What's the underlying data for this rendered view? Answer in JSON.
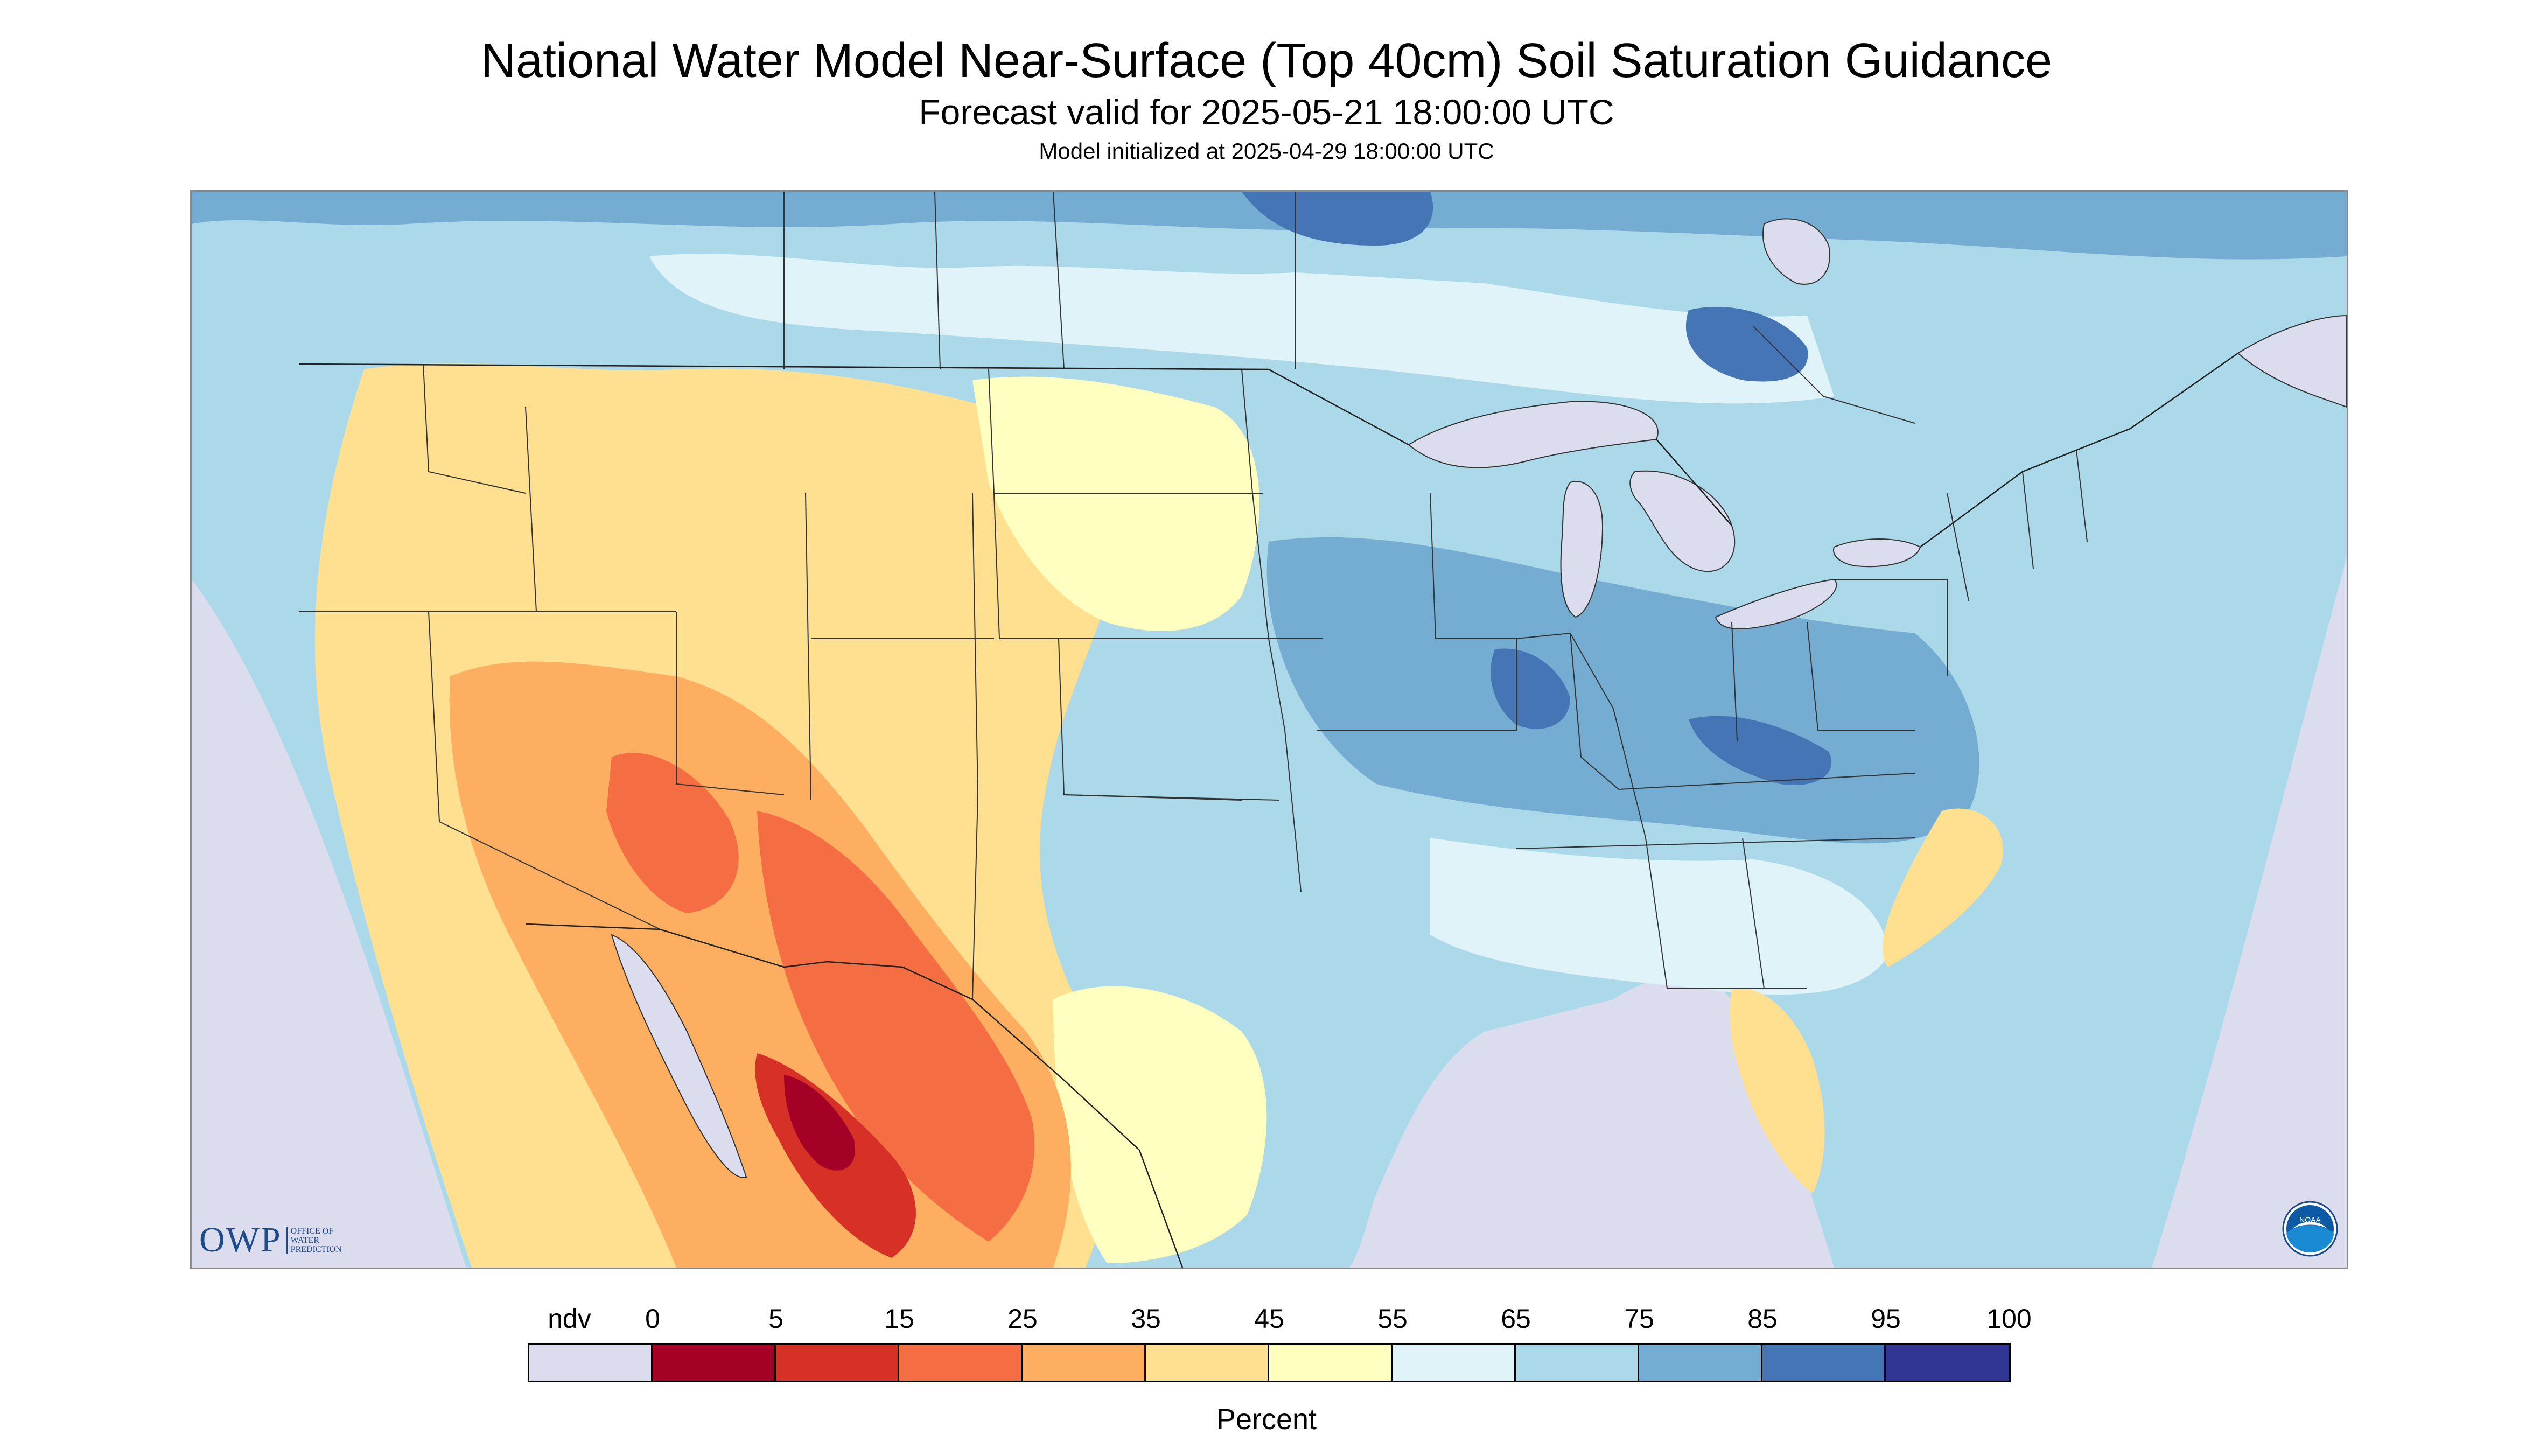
{
  "header": {
    "title": "National Water Model Near-Surface (Top 40cm) Soil Saturation Guidance",
    "subtitle": "Forecast valid for 2025-05-21 18:00:00 UTC",
    "init": "Model initialized at 2025-04-29 18:00:00 UTC"
  },
  "logos": {
    "owp_main": "OWP",
    "owp_sub": [
      "OFFICE OF",
      "WATER",
      "PREDICTION"
    ],
    "noaa": "NOAA"
  },
  "legend": {
    "labels": [
      "ndv",
      "0",
      "5",
      "15",
      "25",
      "35",
      "45",
      "55",
      "65",
      "75",
      "85",
      "95",
      "100"
    ],
    "colors": [
      "#dcdcef",
      "#a50026",
      "#d73027",
      "#f46d43",
      "#fdae61",
      "#fee090",
      "#ffffbf",
      "#e0f3f8",
      "#abd9e9",
      "#74add1",
      "#4575b4",
      "#313695"
    ],
    "unit": "Percent"
  },
  "map": {
    "colors": {
      "ndv": "#dcdcef",
      "water": "#dcdcef",
      "wet_light": "#abd9e9",
      "wet_mid": "#74add1",
      "wet_dark": "#4575b4",
      "pale": "#e0f3f8",
      "neutral": "#ffffbf",
      "dry_light": "#fee090",
      "dry_mid": "#fdae61",
      "dry": "#f46d43",
      "very_dry": "#d73027",
      "extreme_dry": "#a50026",
      "border": "#333333"
    }
  }
}
